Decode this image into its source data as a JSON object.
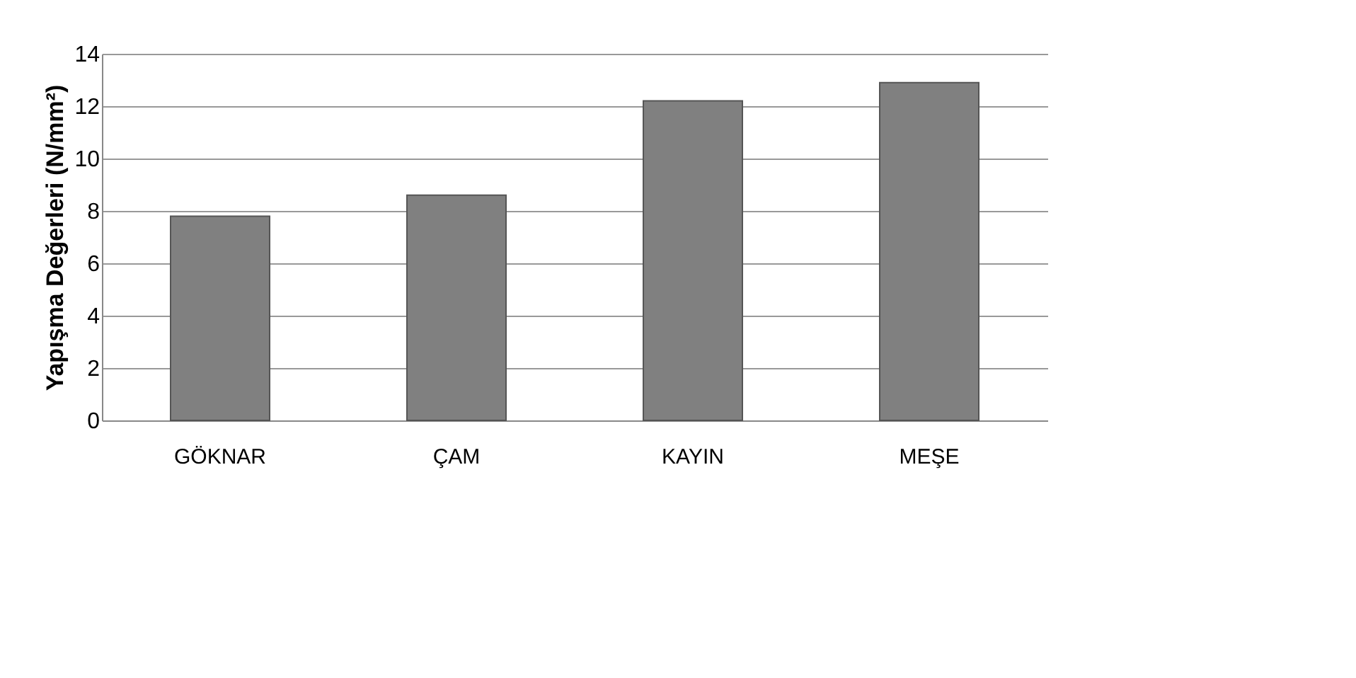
{
  "chart_data": {
    "type": "bar",
    "ylabel": "Yapışma Değerleri (N/mm²)",
    "categories": [
      "GÖKNAR",
      "ÇAM",
      "KAYIN",
      "MEŞE"
    ],
    "values": [
      7.8,
      8.6,
      12.2,
      12.9
    ],
    "color": "#808080",
    "ylim": [
      0,
      14
    ],
    "yticks": [
      0,
      2,
      4,
      6,
      8,
      10,
      12,
      14
    ],
    "grid": "y"
  }
}
